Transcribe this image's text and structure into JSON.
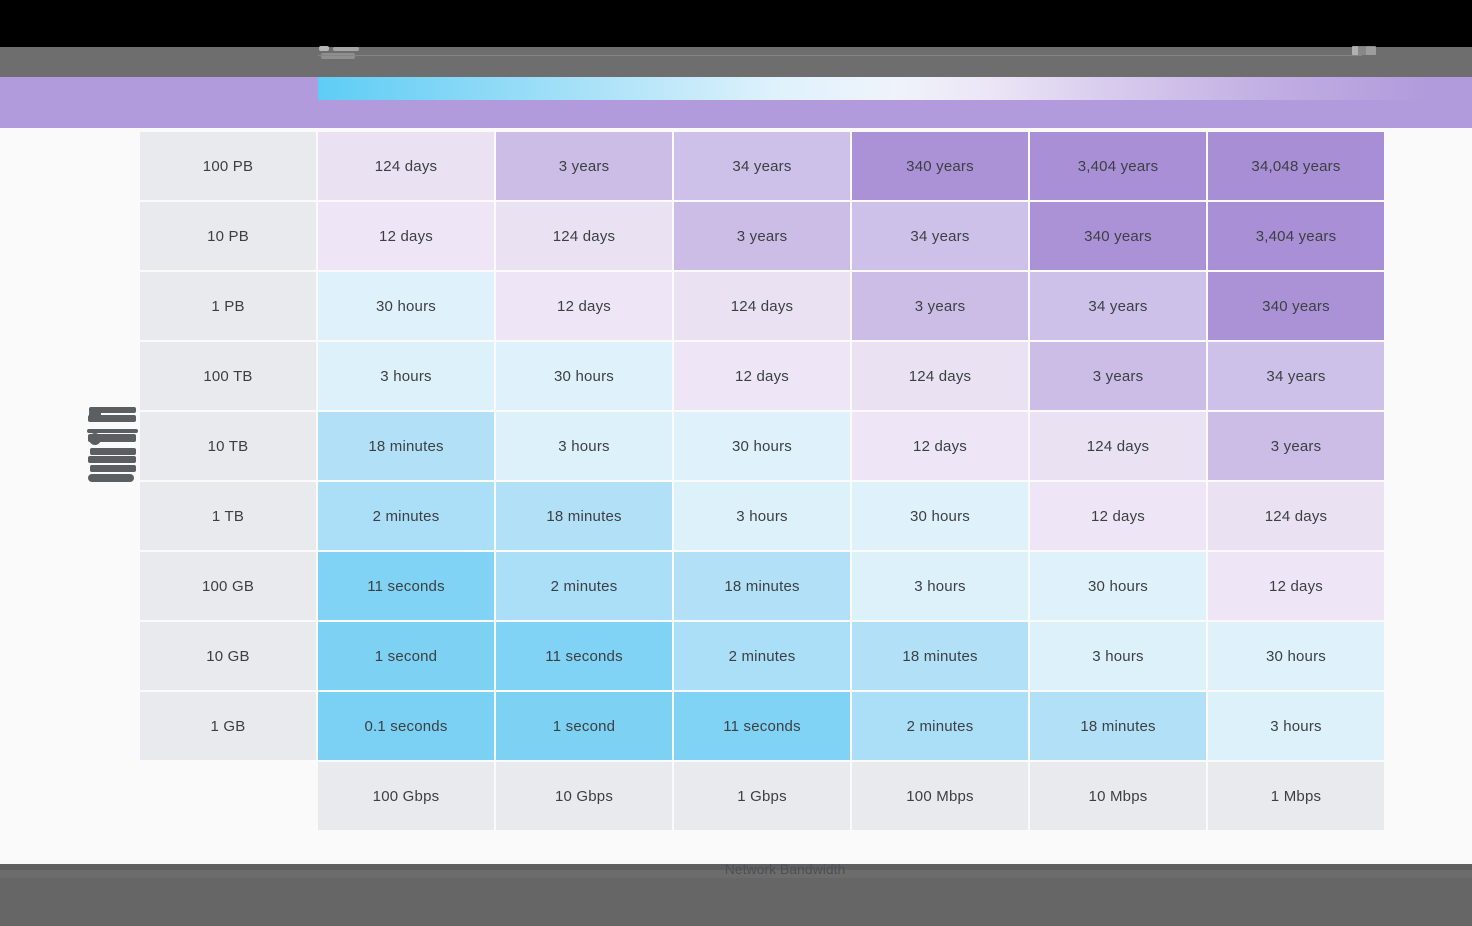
{
  "chart_data": {
    "type": "heatmap",
    "title": "",
    "xlabel": "Network Bandwidth",
    "ylabel": "",
    "rows": [
      "100 PB",
      "10 PB",
      "1 PB",
      "100 TB",
      "10 TB",
      "1 TB",
      "100 GB",
      "10 GB",
      "1 GB"
    ],
    "columns": [
      "100 Gbps",
      "10 Gbps",
      "1 Gbps",
      "100 Mbps",
      "10 Mbps",
      "1 Mbps"
    ],
    "values": [
      [
        "124 days",
        "3 years",
        "34 years",
        "340 years",
        "3,404 years",
        "34,048 years"
      ],
      [
        "12 days",
        "124 days",
        "3 years",
        "34 years",
        "340 years",
        "3,404 years"
      ],
      [
        "30 hours",
        "12 days",
        "124 days",
        "3 years",
        "34 years",
        "340 years"
      ],
      [
        "3 hours",
        "30 hours",
        "12 days",
        "124 days",
        "3 years",
        "34 years"
      ],
      [
        "18 minutes",
        "3 hours",
        "30 hours",
        "12 days",
        "124 days",
        "3 years"
      ],
      [
        "2 minutes",
        "18 minutes",
        "3 hours",
        "30 hours",
        "12 days",
        "124 days"
      ],
      [
        "11 seconds",
        "2 minutes",
        "18 minutes",
        "3 hours",
        "30 hours",
        "12 days"
      ],
      [
        "1 second",
        "11 seconds",
        "2 minutes",
        "18 minutes",
        "3 hours",
        "30 hours"
      ],
      [
        "0.1 seconds",
        "1 second",
        "11 seconds",
        "2 minutes",
        "18 minutes",
        "3 hours"
      ]
    ],
    "cell_colors": {
      "0.1 seconds": "#7bd1f3",
      "1 second": "#7dd2f3",
      "11 seconds": "#80d3f4",
      "2 minutes": "#abdef7",
      "18 minutes": "#b2e1f7",
      "3 hours": "#ddf1fb",
      "30 hours": "#dff2fb",
      "12 days": "#eee5f6",
      "124 days": "#eae1f3",
      "3 years": "#ccbde7",
      "34 years": "#cec1e9",
      "340 years": "#ab92d7",
      "3,404 years": "#a98fd6",
      "34,048 years": "#a88ed5"
    },
    "legend_position": "top",
    "legend_gradient": [
      "#5ecdf6",
      "#b5e5f9",
      "#eff3fb",
      "#d9cdee",
      "#b29bdc"
    ],
    "grid": false
  },
  "colors": {
    "accent_band": "#b29bdc",
    "label_cell": "#e8eaed",
    "cell_text": "#3c4043",
    "chrome_gray": "#6e6e6e",
    "chrome_black": "#000000",
    "footer_gray": "#666666"
  }
}
